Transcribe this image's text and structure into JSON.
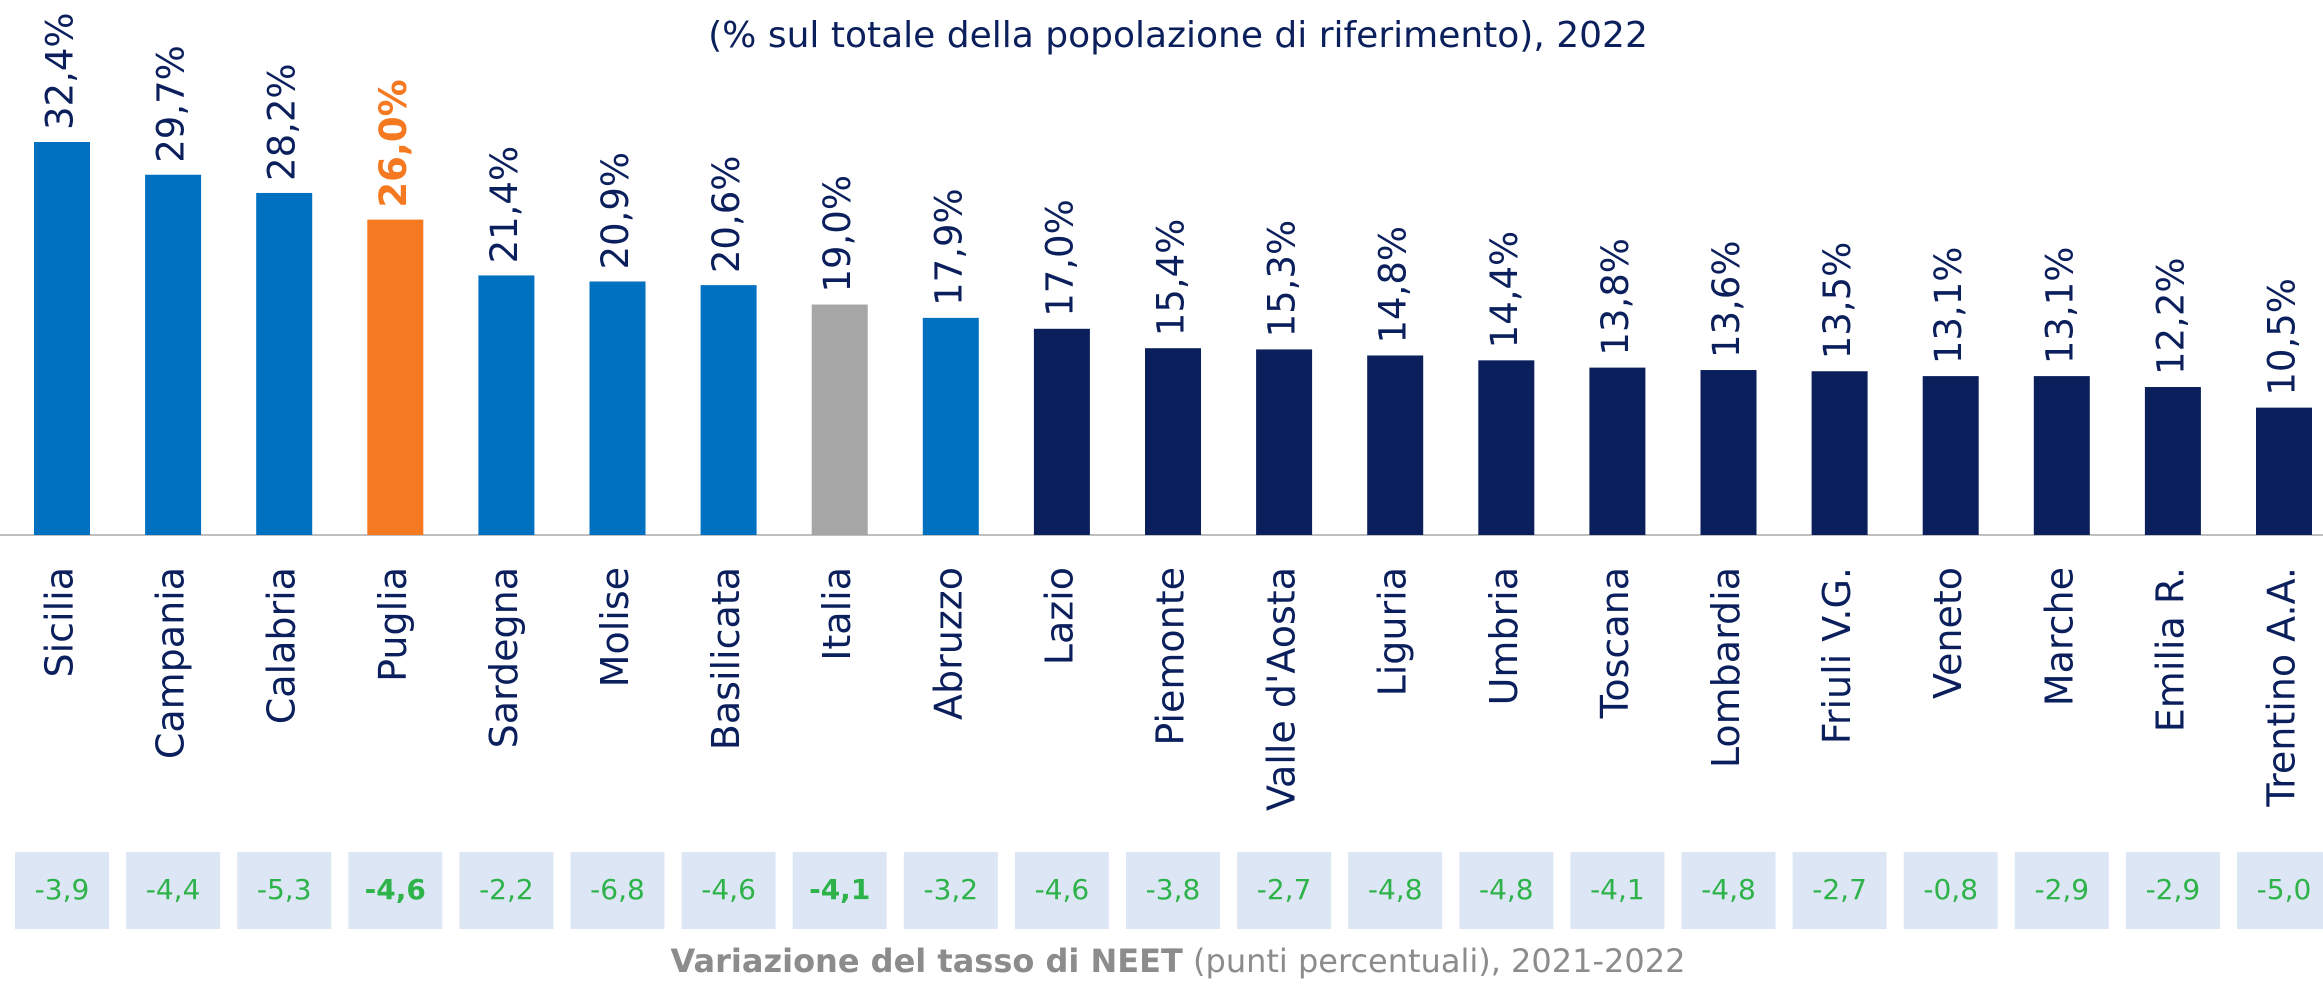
{
  "chart_data": {
    "type": "bar",
    "subtitle": "(% sul totale della popolazione di riferimento), 2022",
    "categories": [
      "Sicilia",
      "Campania",
      "Calabria",
      "Puglia",
      "Sardegna",
      "Molise",
      "Basilicata",
      "Italia",
      "Abruzzo",
      "Lazio",
      "Piemonte",
      "Valle d'Aosta",
      "Liguria",
      "Umbria",
      "Toscana",
      "Lombardia",
      "Friuli V.G.",
      "Veneto",
      "Marche",
      "Emilia R.",
      "Trentino A.A."
    ],
    "values": [
      32.4,
      29.7,
      28.2,
      26.0,
      21.4,
      20.9,
      20.6,
      19.0,
      17.9,
      17.0,
      15.4,
      15.3,
      14.8,
      14.4,
      13.8,
      13.6,
      13.5,
      13.1,
      13.1,
      12.2,
      10.5
    ],
    "value_labels": [
      "32,4%",
      "29,7%",
      "28,2%",
      "26,0%",
      "21,4%",
      "20,9%",
      "20,6%",
      "19,0%",
      "17,9%",
      "17,0%",
      "15,4%",
      "15,3%",
      "14,8%",
      "14,4%",
      "13,8%",
      "13,6%",
      "13,5%",
      "13,1%",
      "13,1%",
      "12,2%",
      "10,5%"
    ],
    "colors": [
      "#0070c0",
      "#0070c0",
      "#0070c0",
      "#f47920",
      "#0070c0",
      "#0070c0",
      "#0070c0",
      "#a6a6a6",
      "#0070c0",
      "#0a1f5c",
      "#0a1f5c",
      "#0a1f5c",
      "#0a1f5c",
      "#0a1f5c",
      "#0a1f5c",
      "#0a1f5c",
      "#0a1f5c",
      "#0a1f5c",
      "#0a1f5c",
      "#0a1f5c",
      "#0a1f5c"
    ],
    "bold_value_labels": [
      3
    ],
    "changes": [
      -3.9,
      -4.4,
      -5.3,
      -4.6,
      -2.2,
      -6.8,
      -4.6,
      -4.1,
      -3.2,
      -4.6,
      -3.8,
      -2.7,
      -4.8,
      -4.8,
      -4.1,
      -4.8,
      -2.7,
      -0.8,
      -2.9,
      -2.9,
      -5.0
    ],
    "change_labels": [
      "-3,9",
      "-4,4",
      "-5,3",
      "-4,6",
      "-2,2",
      "-6,8",
      "-4,6",
      "-4,1",
      "-3,2",
      "-4,6",
      "-3,8",
      "-2,7",
      "-4,8",
      "-4,8",
      "-4,1",
      "-4,8",
      "-2,7",
      "-0,8",
      "-2,9",
      "-2,9",
      "-5,0"
    ],
    "bold_changes": [
      3,
      7
    ],
    "change_title_bold": "Variazione del tasso di NEET",
    "change_title_rest": "(punti percentuali), 2021-2022"
  }
}
